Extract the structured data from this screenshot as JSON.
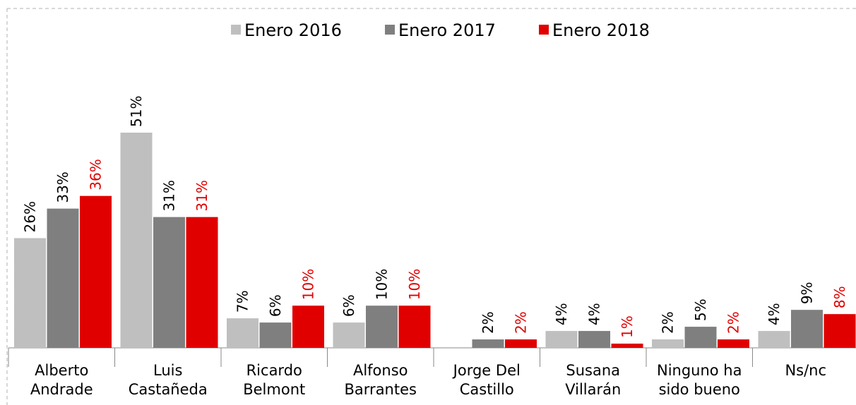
{
  "chart_data": {
    "type": "bar",
    "categories": [
      "Alberto Andrade",
      "Luis Castañeda",
      "Ricardo Belmont",
      "Alfonso Barrantes",
      "Jorge Del Castillo",
      "Susana Villarán",
      "Ninguno ha sido bueno",
      "Ns/nc"
    ],
    "series": [
      {
        "name": "Enero 2016",
        "color": "#bfbfbf",
        "values": [
          26,
          51,
          7,
          6,
          null,
          4,
          2,
          4
        ],
        "value_labels": [
          "26%",
          "51%",
          "7%",
          "6%",
          null,
          "4%",
          "2%",
          "4%"
        ]
      },
      {
        "name": "Enero 2017",
        "color": "#7f7f7f",
        "values": [
          33,
          31,
          6,
          10,
          2,
          4,
          5,
          9
        ],
        "value_labels": [
          "33%",
          "31%",
          "6%",
          "10%",
          "2%",
          "4%",
          "5%",
          "9%"
        ]
      },
      {
        "name": "Enero 2018",
        "color": "#e00000",
        "values": [
          36,
          31,
          10,
          10,
          2,
          1,
          2,
          8
        ],
        "value_labels": [
          "36%",
          "31%",
          "10%",
          "10%",
          "2%",
          "1%",
          "2%",
          "8%"
        ]
      }
    ],
    "legend": "top"
  }
}
